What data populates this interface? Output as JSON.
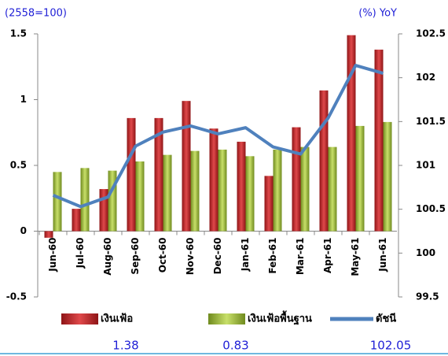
{
  "chart_data": {
    "type": "bar",
    "y_label": "(2558=100)",
    "y2_label": "(%) YoY",
    "categories": [
      "Jun-60",
      "Jul-60",
      "Aug-60",
      "Sep-60",
      "Oct-60",
      "Nov-60",
      "Dec-60",
      "Jan-61",
      "Feb-61",
      "Mar-61",
      "Apr-61",
      "May-61",
      "Jun-61"
    ],
    "series": [
      {
        "name": "เงินเฟ้อ",
        "type": "bar",
        "color": "#c0282a",
        "values": [
          -0.05,
          0.17,
          0.32,
          0.86,
          0.86,
          0.99,
          0.78,
          0.68,
          0.42,
          0.79,
          1.07,
          1.49,
          1.38
        ]
      },
      {
        "name": "เงินเฟ้อพื้นฐาน",
        "type": "bar",
        "color": "#9bbb3b",
        "values": [
          0.45,
          0.48,
          0.46,
          0.53,
          0.58,
          0.61,
          0.62,
          0.57,
          0.62,
          0.64,
          0.64,
          0.8,
          0.83
        ]
      },
      {
        "name": "ดัชนี",
        "type": "line",
        "axis": "y2",
        "color": "#4f81bd",
        "values": [
          100.66,
          100.53,
          100.64,
          101.22,
          101.38,
          101.45,
          101.36,
          101.43,
          101.21,
          101.13,
          101.54,
          102.14,
          102.05
        ]
      }
    ],
    "ylim": [
      -0.5,
      1.5
    ],
    "yticks": [
      -0.5,
      0,
      0.5,
      1,
      1.5
    ],
    "y2lim": [
      99.5,
      102.5
    ],
    "y2ticks": [
      99.5,
      100,
      100.5,
      101,
      101.5,
      102,
      102.5
    ],
    "grid": false
  }
}
